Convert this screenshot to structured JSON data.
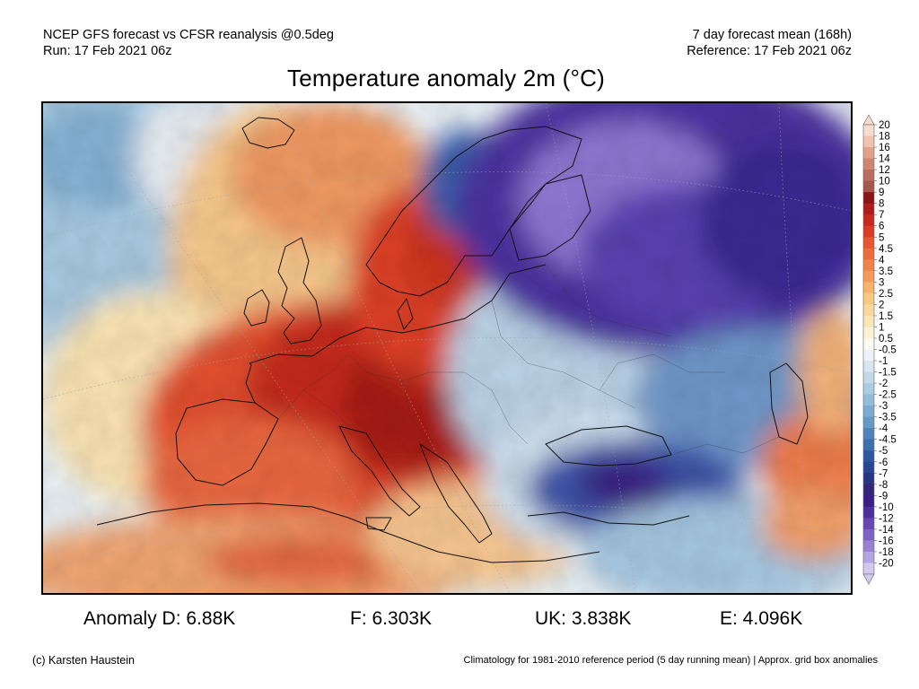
{
  "header": {
    "model_line": "NCEP GFS forecast vs CFSR reanalysis @0.5deg",
    "run_line": "Run: 17 Feb 2021 06z",
    "period_line": "7 day forecast mean (168h)",
    "reference_line": "Reference: 17 Feb 2021 06z"
  },
  "title": "Temperature anomaly 2m (°C)",
  "map": {
    "region": "Europe",
    "variable": "2m temperature anomaly",
    "units": "°C",
    "features": [
      {
        "name": "western-central-europe-warm-anomaly",
        "level": "5 to 8"
      },
      {
        "name": "scandinavia-warm-anomaly",
        "level": "3 to 7"
      },
      {
        "name": "north-africa-warm-anomaly",
        "level": "2 to 5"
      },
      {
        "name": "northwest-russia-cold-anomaly",
        "level": "-8 to -14"
      },
      {
        "name": "eastern-europe-cold-anomaly",
        "level": "-1 to -4"
      },
      {
        "name": "anatolia-cold-anomaly",
        "level": "-5 to -9"
      },
      {
        "name": "north-atlantic-cold-anomaly",
        "level": "-1 to -3"
      }
    ]
  },
  "colorbar": {
    "labels": [
      "20",
      "18",
      "16",
      "14",
      "12",
      "10",
      "9",
      "8",
      "7",
      "6",
      "5",
      "4.5",
      "4",
      "3.5",
      "3",
      "2.5",
      "2",
      "1.5",
      "1",
      "0.5",
      "-0.5",
      "-1",
      "-1.5",
      "-2",
      "-2.5",
      "-3",
      "-3.5",
      "-4",
      "-4.5",
      "-5",
      "-6",
      "-7",
      "-8",
      "-9",
      "-10",
      "-12",
      "-14",
      "-16",
      "-18",
      "-20"
    ],
    "colors": [
      "#f7ddd0",
      "#efc3ad",
      "#e1a18a",
      "#cf8570",
      "#bd6d5d",
      "#a7564b",
      "#8b1414",
      "#ae1d1b",
      "#c9281e",
      "#dd3a25",
      "#e85531",
      "#ee6b3c",
      "#f2824a",
      "#f59a5a",
      "#f7b26d",
      "#f9c883",
      "#fad89b",
      "#fbe6b6",
      "#fcf2d6",
      "#fdfaf0",
      "#eef3f7",
      "#d7e6ef",
      "#c2d9e8",
      "#abcbe1",
      "#93bcd9",
      "#7cabd0",
      "#6599c6",
      "#4f85bb",
      "#3b6fae",
      "#2d58a0",
      "#264592",
      "#2a3484",
      "#332577",
      "#3a2085",
      "#4c2f9c",
      "#6546b3",
      "#7d62c6",
      "#9781d4",
      "#b3a4e2",
      "#d2c9ef"
    ]
  },
  "stats": {
    "anomaly_d": "Anomaly D: 6.88K",
    "anomaly_f": "F: 6.303K",
    "anomaly_uk": "UK: 3.838K",
    "anomaly_e": "E: 4.096K"
  },
  "footer": {
    "credit": "(c) Karsten Haustein",
    "note": "Climatology for 1981-2010 reference period (5 day running mean) | Approx. grid box anomalies"
  }
}
